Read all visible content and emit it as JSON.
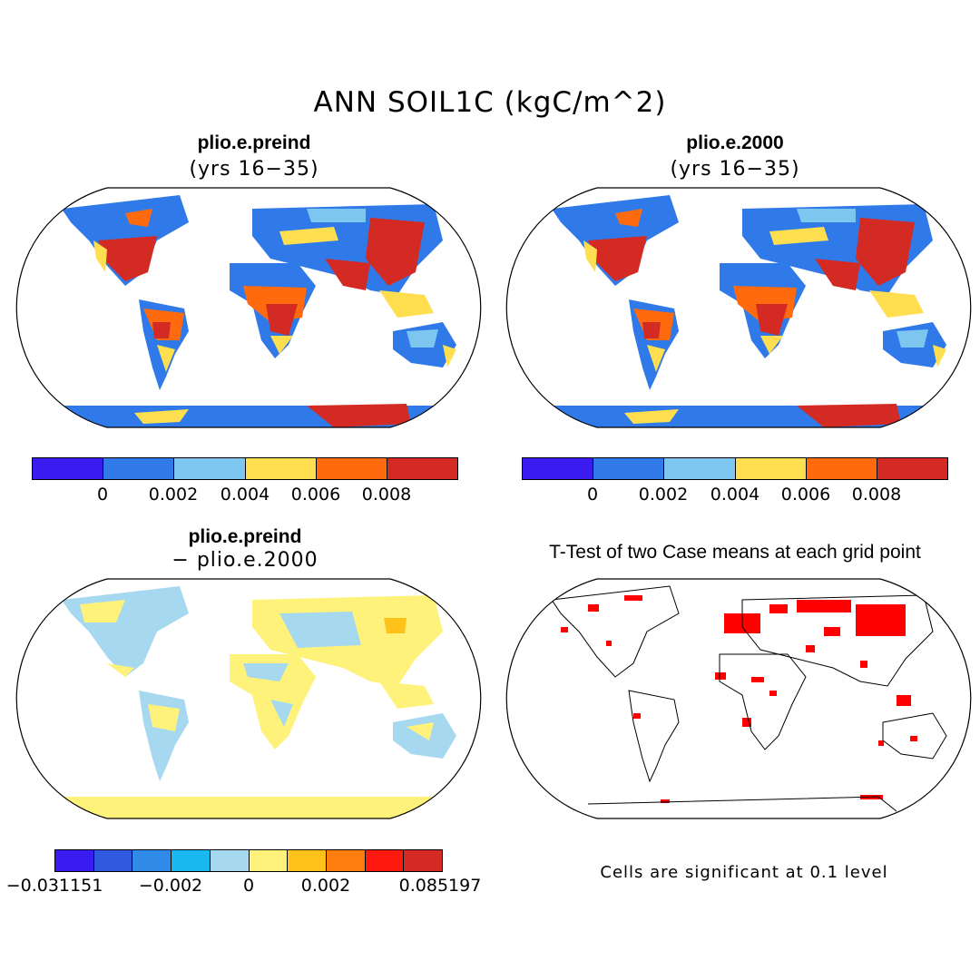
{
  "title": "ANN SOIL1C (kgC/m^2)",
  "panels": {
    "top_left": {
      "title": "plio.e.preind",
      "subtitle": "(yrs 16−35)"
    },
    "top_right": {
      "title": "plio.e.2000",
      "subtitle": "(yrs 16−35)"
    },
    "bottom_left": {
      "title": "plio.e.preind",
      "subtitle": "− plio.e.2000"
    },
    "bottom_right": {
      "title": "T-Test of two Case means at each grid point",
      "note": "Cells are significant at 0.1 level"
    }
  },
  "colorbar_abs": {
    "colors": [
      "#3a1cf0",
      "#2f7ae8",
      "#7dc6f0",
      "#ffdf4f",
      "#ff6a0f",
      "#d42a24"
    ],
    "ticks": [
      "0",
      "0.002",
      "0.004",
      "0.006",
      "0.008"
    ]
  },
  "colorbar_diff": {
    "colors": [
      "#3a1cf0",
      "#2f5ae0",
      "#2f8ae8",
      "#1ab8f0",
      "#a6d8f0",
      "#fff27a",
      "#ffc21a",
      "#ff7e0f",
      "#ff1a0f",
      "#d42a24"
    ],
    "ticks": [
      "−0.031151",
      "−0.002",
      "0",
      "0.002",
      "0.085197"
    ]
  },
  "colors": {
    "significant": "#ff0000",
    "ocean": "#ffffff",
    "coastline": "#000000"
  }
}
